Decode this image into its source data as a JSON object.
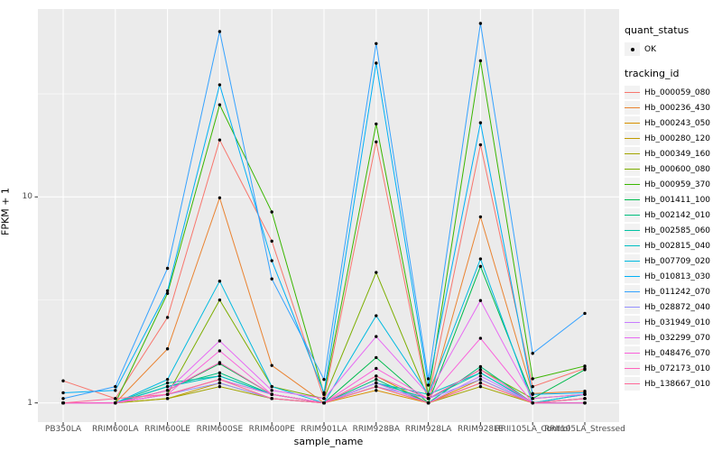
{
  "theme": {
    "panel_bg": "#EBEBEB",
    "grid_color": "#FFFFFF",
    "axis_text_color": "#4D4D4D",
    "axis_title_color": "#000000",
    "legend_key_bg": "#F2F2F2",
    "marker_color": "#000000"
  },
  "chart_data": {
    "type": "line",
    "title": "",
    "xlabel": "sample_name",
    "ylabel": "FPKM + 1",
    "y_scale": "log10",
    "y_tick_labels": [
      "1",
      "10"
    ],
    "y_tick_values": [
      1,
      10
    ],
    "y_minor_values": [
      3.1623,
      31.623
    ],
    "ylim": [
      0.81,
      81.6
    ],
    "grid": "white major+minor gridlines on grey panel",
    "legend_position": "right",
    "marker": "black point on every data value (quant_status OK)",
    "categories": [
      "PB350LA",
      "RRIM600LA",
      "RRIM600LE",
      "RRIM600SE",
      "RRIM600PE",
      "RRIM901LA",
      "RRIM928BA",
      "RRIM928LA",
      "RRIM928LE",
      "RRII105LA_Control",
      "RRII105LA_Stressed"
    ],
    "legend": {
      "quant_status_title": "quant_status",
      "quant_status_items": [
        "OK"
      ],
      "tracking_id_title": "tracking_id"
    },
    "series": [
      {
        "name": "Hb_000059_080",
        "color": "#F8766D",
        "values": [
          1.28,
          1.05,
          2.6,
          18.9,
          6.1,
          1.05,
          18.5,
          1.05,
          17.9,
          1.2,
          1.47
        ]
      },
      {
        "name": "Hb_000236_430",
        "color": "#EA8331",
        "values": [
          1.0,
          1.0,
          1.83,
          9.9,
          1.52,
          1.0,
          1.25,
          1.0,
          8.0,
          1.11,
          1.14
        ]
      },
      {
        "name": "Hb_000243_050",
        "color": "#D89000",
        "values": [
          1.0,
          1.0,
          1.1,
          1.3,
          1.1,
          1.0,
          1.15,
          1.0,
          1.3,
          1.0,
          1.05
        ]
      },
      {
        "name": "Hb_000280_120",
        "color": "#C09B00",
        "values": [
          1.0,
          1.0,
          1.05,
          1.25,
          1.05,
          1.0,
          1.35,
          1.0,
          1.25,
          1.0,
          1.0
        ]
      },
      {
        "name": "Hb_000349_160",
        "color": "#A3A500",
        "values": [
          1.0,
          1.0,
          1.05,
          1.2,
          1.05,
          1.0,
          1.2,
          1.0,
          1.2,
          1.0,
          1.0
        ]
      },
      {
        "name": "Hb_000600_080",
        "color": "#7CAE00",
        "values": [
          1.0,
          1.0,
          1.1,
          3.16,
          1.2,
          1.05,
          4.3,
          1.05,
          1.45,
          1.05,
          1.1
        ]
      },
      {
        "name": "Hb_000959_370",
        "color": "#39B600",
        "values": [
          1.0,
          1.0,
          3.4,
          28.0,
          8.45,
          1.1,
          22.6,
          1.1,
          45.8,
          1.31,
          1.51
        ]
      },
      {
        "name": "Hb_001411_100",
        "color": "#00BB4E",
        "values": [
          1.0,
          1.0,
          1.15,
          1.55,
          1.1,
          1.0,
          1.66,
          1.0,
          4.6,
          1.05,
          1.45
        ]
      },
      {
        "name": "Hb_002142_010",
        "color": "#00BF7D",
        "values": [
          1.0,
          1.0,
          1.2,
          1.4,
          1.1,
          1.0,
          1.3,
          1.0,
          1.5,
          1.0,
          1.1
        ]
      },
      {
        "name": "Hb_002585_060",
        "color": "#00C1A3",
        "values": [
          1.0,
          1.0,
          1.25,
          1.35,
          1.1,
          1.0,
          1.25,
          1.05,
          1.4,
          1.0,
          1.05
        ]
      },
      {
        "name": "Hb_002815_040",
        "color": "#00BFC4",
        "values": [
          1.0,
          1.0,
          1.2,
          1.35,
          1.1,
          1.0,
          1.25,
          1.1,
          1.4,
          1.0,
          1.0
        ]
      },
      {
        "name": "Hb_007709_020",
        "color": "#00BAE0",
        "values": [
          1.0,
          1.0,
          1.3,
          3.9,
          1.2,
          1.0,
          2.65,
          1.1,
          5.0,
          1.0,
          1.1
        ]
      },
      {
        "name": "Hb_010813_030",
        "color": "#00B0F6",
        "values": [
          1.12,
          1.15,
          3.5,
          35.0,
          4.9,
          1.12,
          44.6,
          1.22,
          22.9,
          1.1,
          1.12
        ]
      },
      {
        "name": "Hb_011242_070",
        "color": "#35A2FF",
        "values": [
          1.05,
          1.2,
          4.5,
          63.5,
          4.0,
          1.3,
          55.5,
          1.31,
          69.5,
          1.74,
          2.72
        ]
      },
      {
        "name": "Hb_028872_040",
        "color": "#9590FF",
        "values": [
          1.0,
          1.0,
          1.1,
          1.25,
          1.05,
          1.0,
          1.2,
          1.05,
          1.3,
          1.0,
          1.0
        ]
      },
      {
        "name": "Hb_031949_010",
        "color": "#C77CFF",
        "values": [
          1.0,
          1.0,
          1.1,
          1.3,
          1.1,
          1.0,
          1.25,
          1.0,
          1.35,
          1.0,
          1.0
        ]
      },
      {
        "name": "Hb_032299_070",
        "color": "#E76BF3",
        "values": [
          1.0,
          1.0,
          1.15,
          2.0,
          1.15,
          1.05,
          2.1,
          1.1,
          3.14,
          1.05,
          1.1
        ]
      },
      {
        "name": "Hb_048476_070",
        "color": "#FA62DB",
        "values": [
          1.0,
          1.0,
          1.1,
          1.79,
          1.1,
          1.0,
          1.47,
          1.05,
          2.06,
          1.0,
          1.05
        ]
      },
      {
        "name": "Hb_072173_010",
        "color": "#FF62BC",
        "values": [
          1.0,
          1.0,
          1.15,
          1.57,
          1.1,
          1.0,
          1.35,
          1.05,
          1.45,
          1.0,
          1.0
        ]
      },
      {
        "name": "Hb_138667_010",
        "color": "#FF6A98",
        "values": [
          1.0,
          1.05,
          1.1,
          1.3,
          1.05,
          1.0,
          1.2,
          1.0,
          1.25,
          1.0,
          1.05
        ]
      }
    ]
  }
}
